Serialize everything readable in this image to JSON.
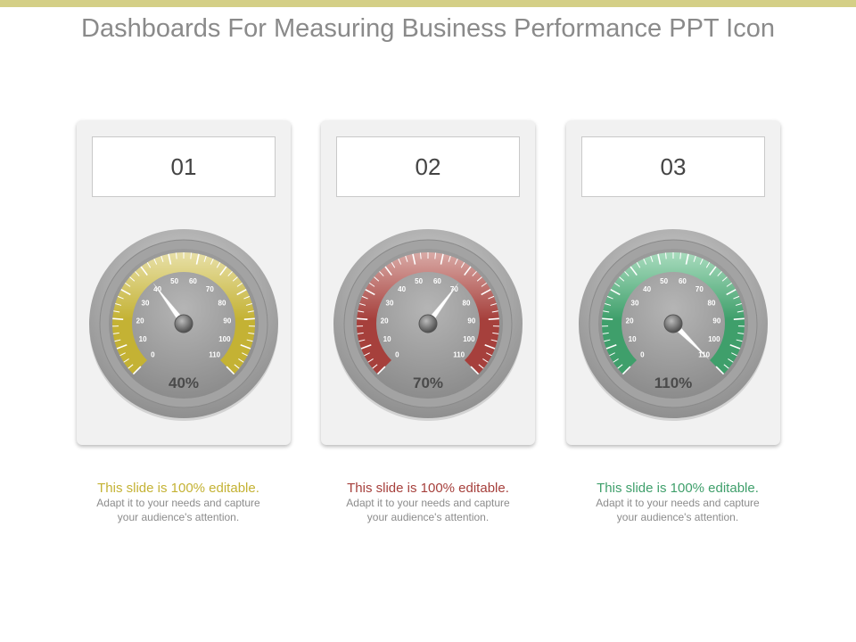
{
  "title": "Dashboards For Measuring Business Performance PPT Icon",
  "colors": {
    "top_bar": "#d4cf86",
    "title": "#8a8a8a"
  },
  "gauge_scale": {
    "min": 0,
    "max": 110,
    "labels": [
      "0",
      "10",
      "20",
      "30",
      "40",
      "50",
      "60",
      "70",
      "80",
      "90",
      "100",
      "110"
    ]
  },
  "cards": [
    {
      "number": "01",
      "value": 40,
      "value_label": "40%",
      "color": "#c4b234",
      "color_light": "#e8e0a8",
      "caption_lead": "This slide is 100% editable.",
      "caption_rest": "Adapt it to your needs and capture your audience's attention."
    },
    {
      "number": "02",
      "value": 70,
      "value_label": "70%",
      "color": "#a6403c",
      "color_light": "#d9aaa6",
      "caption_lead": "This slide is 100% editable.",
      "caption_rest": "Adapt it to your needs and capture your audience's attention."
    },
    {
      "number": "03",
      "value": 110,
      "value_label": "110%",
      "color": "#3f9f6b",
      "color_light": "#a9dcbe",
      "caption_lead": "This slide is 100% editable.",
      "caption_rest": "Adapt it to your needs and capture your audience's attention."
    }
  ]
}
